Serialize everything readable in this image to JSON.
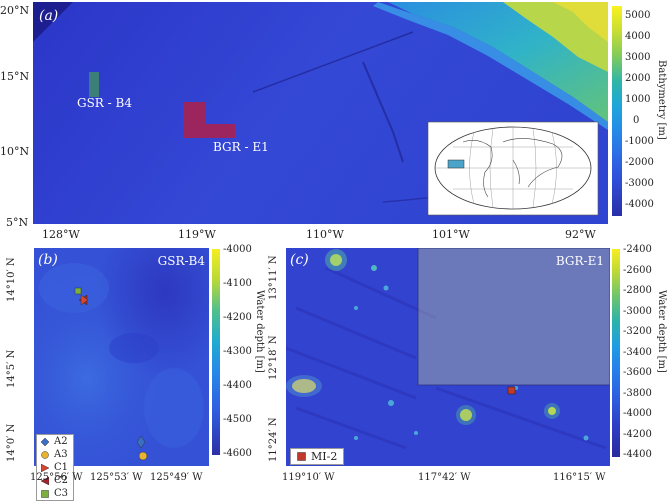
{
  "panel_a": {
    "letter": "(a)",
    "lat_ticks": [
      "20°N",
      "15°N",
      "10°N",
      "5°N"
    ],
    "lon_ticks": [
      "128°W",
      "119°W",
      "110°W",
      "101°W",
      "92°W"
    ],
    "regions": [
      {
        "label": "GSR - B4",
        "color": "#3c8c6a"
      },
      {
        "label": "BGR - E1",
        "color": "#b0204a"
      }
    ],
    "colorbar": {
      "label": "Bathymetry [m]",
      "ticks": [
        "5000",
        "4000",
        "3000",
        "2000",
        "1000",
        "0",
        "-1000",
        "-2000",
        "-3000",
        "-4000"
      ]
    }
  },
  "panel_b": {
    "letter": "(b)",
    "title": "GSR-B4",
    "lat_ticks": [
      "14°10′ N",
      "14°5′ N",
      "14°0′ N"
    ],
    "lon_ticks": [
      "125°56′ W",
      "125°53′ W",
      "125°49′ W"
    ],
    "colorbar": {
      "label": "Water depth [m]",
      "ticks": [
        "-4000",
        "-4100",
        "-4200",
        "-4300",
        "-4400",
        "-4500",
        "-4600"
      ]
    },
    "legend": [
      {
        "label": "A2",
        "marker": "diamond",
        "color": "#3a6fc4"
      },
      {
        "label": "A3",
        "marker": "circle",
        "color": "#e8b430"
      },
      {
        "label": "C1",
        "marker": "triangle-right",
        "color": "#d9452f"
      },
      {
        "label": "C2",
        "marker": "triangle-left",
        "color": "#a3222b"
      },
      {
        "label": "C3",
        "marker": "square",
        "color": "#7bb03c"
      }
    ]
  },
  "panel_c": {
    "letter": "(c)",
    "title": "BGR-E1",
    "lat_ticks": [
      "13°11′ N",
      "12°18′ N",
      "11°24′ N"
    ],
    "lon_ticks": [
      "119°10′ W",
      "117°42′ W",
      "116°15′ W"
    ],
    "colorbar": {
      "label": "Water depth [m]",
      "ticks": [
        "-2400",
        "-2600",
        "-2800",
        "-3000",
        "-3200",
        "-3400",
        "-3600",
        "-3800",
        "-4000",
        "-4200",
        "-4400"
      ]
    },
    "legend": [
      {
        "label": "MI-2",
        "marker": "square",
        "color": "#c0392b"
      }
    ]
  }
}
